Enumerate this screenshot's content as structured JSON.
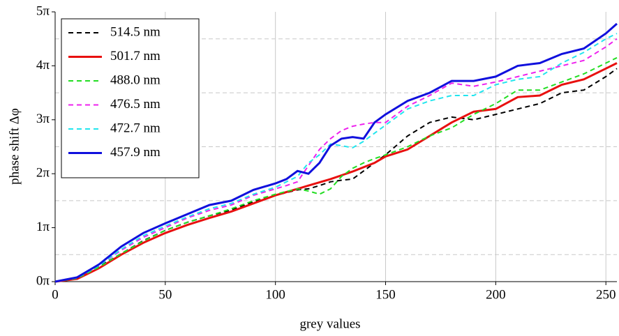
{
  "chart_data": {
    "type": "line",
    "x_label": "grey values",
    "y_label": "phase shift  Δφ",
    "x": [
      0,
      10,
      20,
      30,
      40,
      50,
      60,
      70,
      80,
      90,
      100,
      105,
      110,
      115,
      120,
      125,
      130,
      135,
      140,
      145,
      150,
      160,
      170,
      180,
      190,
      200,
      210,
      220,
      230,
      240,
      250,
      255
    ],
    "series": [
      {
        "name": "514.5 nm",
        "color": "#000000",
        "dash": true,
        "values": [
          0,
          0.08,
          0.28,
          0.52,
          0.76,
          0.95,
          1.1,
          1.22,
          1.33,
          1.48,
          1.6,
          1.65,
          1.7,
          1.72,
          1.78,
          1.85,
          1.88,
          1.9,
          2.05,
          2.2,
          2.35,
          2.7,
          2.95,
          3.05,
          3.0,
          3.1,
          3.2,
          3.3,
          3.5,
          3.55,
          3.8,
          3.95
        ]
      },
      {
        "name": "501.7 nm",
        "color": "#e8100f",
        "dash": false,
        "values": [
          0,
          0.05,
          0.25,
          0.5,
          0.72,
          0.9,
          1.05,
          1.18,
          1.3,
          1.45,
          1.6,
          1.66,
          1.72,
          1.78,
          1.84,
          1.9,
          1.97,
          2.04,
          2.12,
          2.2,
          2.32,
          2.45,
          2.7,
          2.95,
          3.15,
          3.2,
          3.42,
          3.45,
          3.65,
          3.75,
          3.95,
          4.05
        ]
      },
      {
        "name": "488.0 nm",
        "color": "#22dd22",
        "dash": true,
        "values": [
          0,
          0.06,
          0.27,
          0.52,
          0.75,
          0.95,
          1.1,
          1.22,
          1.35,
          1.5,
          1.62,
          1.67,
          1.72,
          1.68,
          1.62,
          1.72,
          1.95,
          2.1,
          2.2,
          2.28,
          2.35,
          2.5,
          2.7,
          2.85,
          3.1,
          3.3,
          3.55,
          3.55,
          3.7,
          3.85,
          4.05,
          4.15
        ]
      },
      {
        "name": "476.5 nm",
        "color": "#ee22ee",
        "dash": true,
        "values": [
          0,
          0.07,
          0.3,
          0.58,
          0.82,
          1.0,
          1.18,
          1.32,
          1.42,
          1.6,
          1.72,
          1.78,
          1.85,
          2.15,
          2.45,
          2.65,
          2.8,
          2.88,
          2.92,
          2.95,
          2.95,
          3.25,
          3.45,
          3.68,
          3.62,
          3.7,
          3.8,
          3.9,
          4.0,
          4.1,
          4.35,
          4.5
        ]
      },
      {
        "name": "472.7 nm",
        "color": "#22e5ee",
        "dash": true,
        "values": [
          0,
          0.07,
          0.3,
          0.6,
          0.85,
          1.03,
          1.2,
          1.35,
          1.45,
          1.62,
          1.75,
          1.85,
          1.95,
          2.2,
          2.35,
          2.55,
          2.52,
          2.48,
          2.6,
          2.75,
          2.9,
          3.2,
          3.35,
          3.45,
          3.45,
          3.65,
          3.75,
          3.8,
          4.05,
          4.25,
          4.5,
          4.6
        ]
      },
      {
        "name": "457.9 nm",
        "color": "#1010dd",
        "dash": false,
        "values": [
          0,
          0.08,
          0.32,
          0.65,
          0.9,
          1.08,
          1.25,
          1.42,
          1.5,
          1.7,
          1.82,
          1.9,
          2.05,
          2.0,
          2.2,
          2.52,
          2.65,
          2.68,
          2.65,
          2.95,
          3.1,
          3.35,
          3.5,
          3.72,
          3.72,
          3.8,
          4.0,
          4.05,
          4.22,
          4.32,
          4.6,
          4.78
        ]
      }
    ],
    "xlim": [
      0,
      255
    ],
    "ylim": [
      0,
      5
    ],
    "xticks": [
      0,
      50,
      100,
      150,
      200,
      250
    ],
    "yticks": [
      {
        "value": 0,
        "label": "0π"
      },
      {
        "value": 1,
        "label": "1π"
      },
      {
        "value": 2,
        "label": "2π"
      },
      {
        "value": 3,
        "label": "3π"
      },
      {
        "value": 4,
        "label": "4π"
      },
      {
        "value": 5,
        "label": "5π"
      }
    ],
    "y_grid": [
      0.5,
      1.5,
      2.5,
      3.5,
      4.5
    ],
    "legend": "upper left"
  }
}
